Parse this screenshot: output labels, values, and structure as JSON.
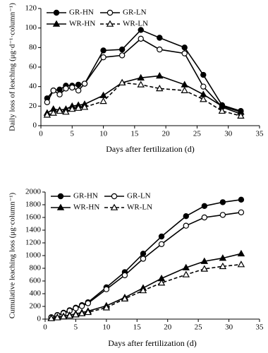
{
  "chart_data": [
    {
      "type": "line",
      "xlabel": "Days after fertilization (d)",
      "ylabel": "Daily loss of leaching (μg·d⁻¹·column⁻¹)",
      "x": [
        1,
        2,
        3,
        4,
        5,
        6,
        7,
        10,
        13,
        16,
        19,
        23,
        26,
        29,
        32
      ],
      "xlim": [
        0,
        35
      ],
      "xticks": [
        0,
        5,
        10,
        15,
        20,
        25,
        30,
        35
      ],
      "ylim": [
        0,
        120
      ],
      "yticks": [
        0,
        20,
        40,
        60,
        80,
        100,
        120
      ],
      "legend": "upper left",
      "series": [
        {
          "name": "GR-HN",
          "color": "#000000",
          "marker": "circle",
          "filled": true,
          "dashed": false,
          "values": [
            28,
            36,
            37,
            41,
            41,
            42,
            43,
            77,
            78,
            98,
            90,
            80,
            52,
            21,
            15
          ]
        },
        {
          "name": "GR-LN",
          "color": "#000000",
          "marker": "circle",
          "filled": false,
          "dashed": false,
          "values": [
            24,
            36,
            32,
            38,
            39,
            36,
            43,
            70,
            72,
            89,
            78,
            74,
            40,
            19,
            12
          ]
        },
        {
          "name": "WR-HN",
          "color": "#000000",
          "marker": "triangle",
          "filled": true,
          "dashed": false,
          "values": [
            13,
            17,
            16,
            17,
            20,
            21,
            22,
            31,
            44,
            49,
            51,
            42,
            32,
            20,
            14
          ]
        },
        {
          "name": "WR-LN",
          "color": "#000000",
          "marker": "triangle",
          "filled": false,
          "dashed": true,
          "values": [
            11,
            13,
            15,
            14,
            17,
            18,
            19,
            25,
            44,
            42,
            38,
            36,
            27,
            15,
            10
          ]
        }
      ]
    },
    {
      "type": "line",
      "xlabel": "Days after fertilization (d)",
      "ylabel": "Cumulative leaching loss (μg·column⁻¹)",
      "x": [
        1,
        2,
        3,
        4,
        5,
        6,
        7,
        10,
        13,
        16,
        19,
        23,
        26,
        29,
        32
      ],
      "xlim": [
        0,
        35
      ],
      "xticks": [
        0,
        5,
        10,
        15,
        20,
        25,
        30,
        35
      ],
      "ylim": [
        0,
        2000
      ],
      "yticks": [
        0,
        200,
        400,
        600,
        800,
        1000,
        1200,
        1400,
        1600,
        1800,
        2000
      ],
      "legend": "upper left",
      "series": [
        {
          "name": "GR-HN",
          "color": "#000000",
          "marker": "circle",
          "filled": true,
          "dashed": false,
          "values": [
            30,
            65,
            100,
            140,
            180,
            220,
            265,
            500,
            740,
            1030,
            1300,
            1620,
            1780,
            1840,
            1880
          ]
        },
        {
          "name": "GR-LN",
          "color": "#000000",
          "marker": "circle",
          "filled": false,
          "dashed": false,
          "values": [
            25,
            60,
            92,
            130,
            170,
            205,
            250,
            470,
            690,
            950,
            1180,
            1470,
            1600,
            1640,
            1680
          ]
        },
        {
          "name": "WR-HN",
          "color": "#000000",
          "marker": "triangle",
          "filled": true,
          "dashed": false,
          "values": [
            13,
            30,
            46,
            63,
            83,
            104,
            126,
            210,
            340,
            490,
            640,
            810,
            910,
            960,
            1030
          ]
        },
        {
          "name": "WR-LN",
          "color": "#000000",
          "marker": "triangle",
          "filled": false,
          "dashed": true,
          "values": [
            11,
            24,
            39,
            53,
            70,
            88,
            107,
            180,
            320,
            450,
            570,
            700,
            790,
            830,
            860
          ]
        }
      ]
    }
  ]
}
